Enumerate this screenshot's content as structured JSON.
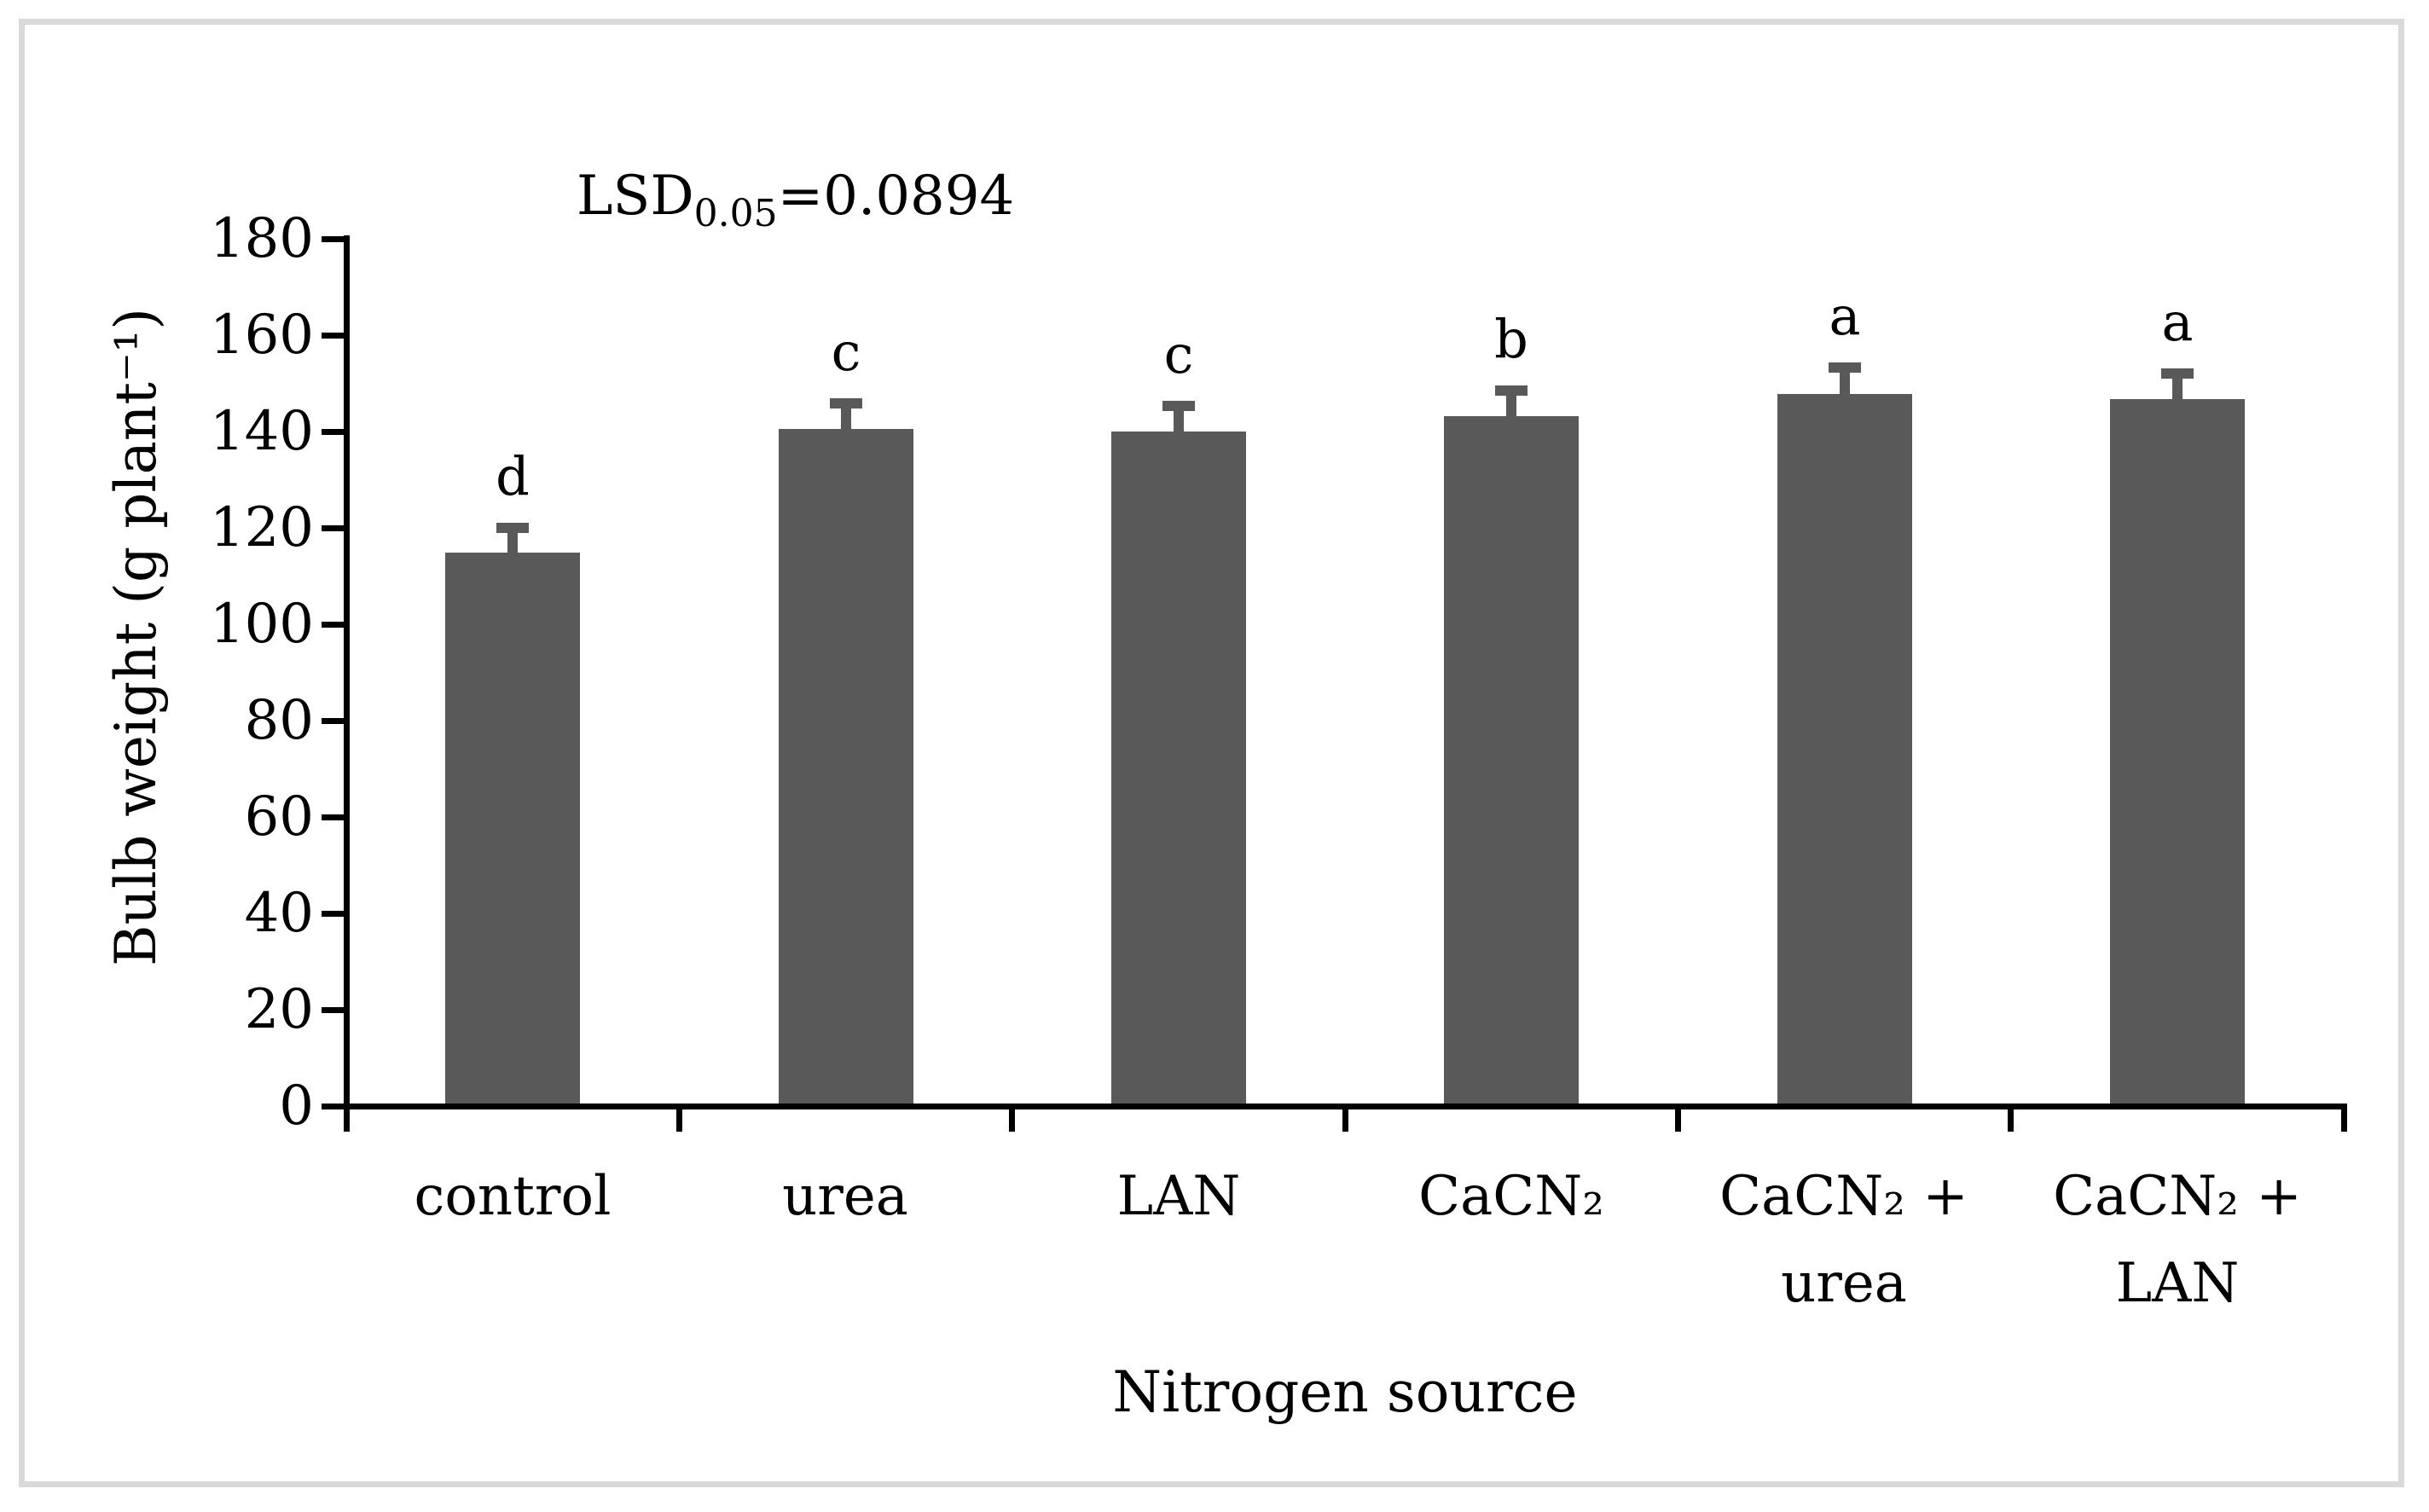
{
  "figure": {
    "background": "#ffffff",
    "border_color": "#d9d9d9"
  },
  "chart_data": {
    "type": "bar",
    "title": "",
    "xlabel": "Nitrogen source",
    "ylabel": "Bulb weight (g plant⁻¹)",
    "ylim": [
      0,
      180
    ],
    "yticks": [
      0,
      20,
      40,
      60,
      80,
      100,
      120,
      140,
      160,
      180
    ],
    "grid": false,
    "legend": false,
    "bar_color": "#595959",
    "error_bar_color": "#595959",
    "axis_color": "#000000",
    "categories": [
      "control",
      "urea",
      "LAN",
      "CaCN₂",
      "CaCN₂ + urea",
      "CaCN₂ + LAN"
    ],
    "category_lines": [
      [
        "control"
      ],
      [
        "urea"
      ],
      [
        "LAN"
      ],
      [
        "CaCN₂"
      ],
      [
        "CaCN₂ +",
        "urea"
      ],
      [
        "CaCN₂ +",
        "LAN"
      ]
    ],
    "values": [
      114.8,
      140.6,
      140.0,
      143.2,
      147.7,
      146.7
    ],
    "errors_plus": [
      5.2,
      5.2,
      5.3,
      5.3,
      5.5,
      5.3
    ],
    "sig_letters": [
      "d",
      "c",
      "c",
      "b",
      "a",
      "a"
    ],
    "annotation": {
      "lsd_prefix": "LSD",
      "lsd_sub": "0.05",
      "lsd_value": "=0.0894"
    }
  }
}
